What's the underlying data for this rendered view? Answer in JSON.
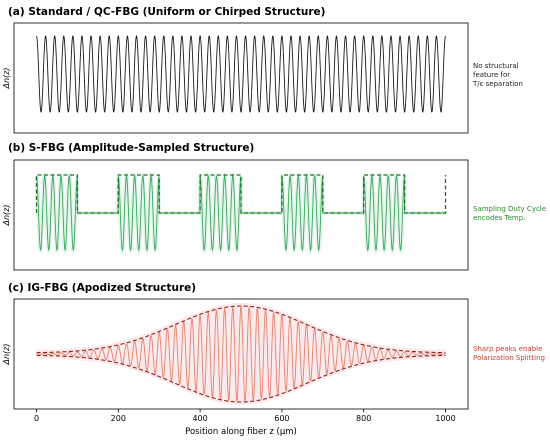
{
  "figure": {
    "xaxis": {
      "label": "Position along fiber z (μm)",
      "ticks": [
        0,
        200,
        400,
        600,
        800,
        1000
      ],
      "range": [
        -55,
        1055
      ]
    },
    "panels": [
      {
        "id": "a",
        "title": "(a) Standard / QC-FBG (Uniform or Chirped Structure)",
        "ylabel": "Δn(z)",
        "annotation": [
          "No structural",
          "feature for",
          "T/ε separation"
        ],
        "annotation_color": "#222222",
        "type": "uniform",
        "periods": 45,
        "line_color": "#1a1a1a"
      },
      {
        "id": "b",
        "title": "(b) S-FBG (Amplitude-Sampled Structure)",
        "ylabel": "Δn(z)",
        "annotation": [
          "Sampling Duty Cycle",
          "encodes Temp."
        ],
        "annotation_color": "#2a8a2a",
        "type": "sampled",
        "sample_period_um": 200,
        "duty_cycle": 0.5,
        "oscillations_per_burst": 5,
        "line_color": "#3aa85a",
        "envelope_color": "#1f6e1f",
        "glow_color": "#cfeedd"
      },
      {
        "id": "c",
        "title": "(c) IG-FBG (Apodized Structure)",
        "ylabel": "Δn(z)",
        "annotation": [
          "Sharp peaks enable",
          "Polarization Splitting"
        ],
        "annotation_color": "#d43a2a",
        "type": "apodized",
        "periods": 50,
        "center_um": 500,
        "sigma_um": 160,
        "line_color": "#e8806a",
        "envelope_color": "#8b2414",
        "glow_color": "#fbe2e6"
      }
    ]
  }
}
